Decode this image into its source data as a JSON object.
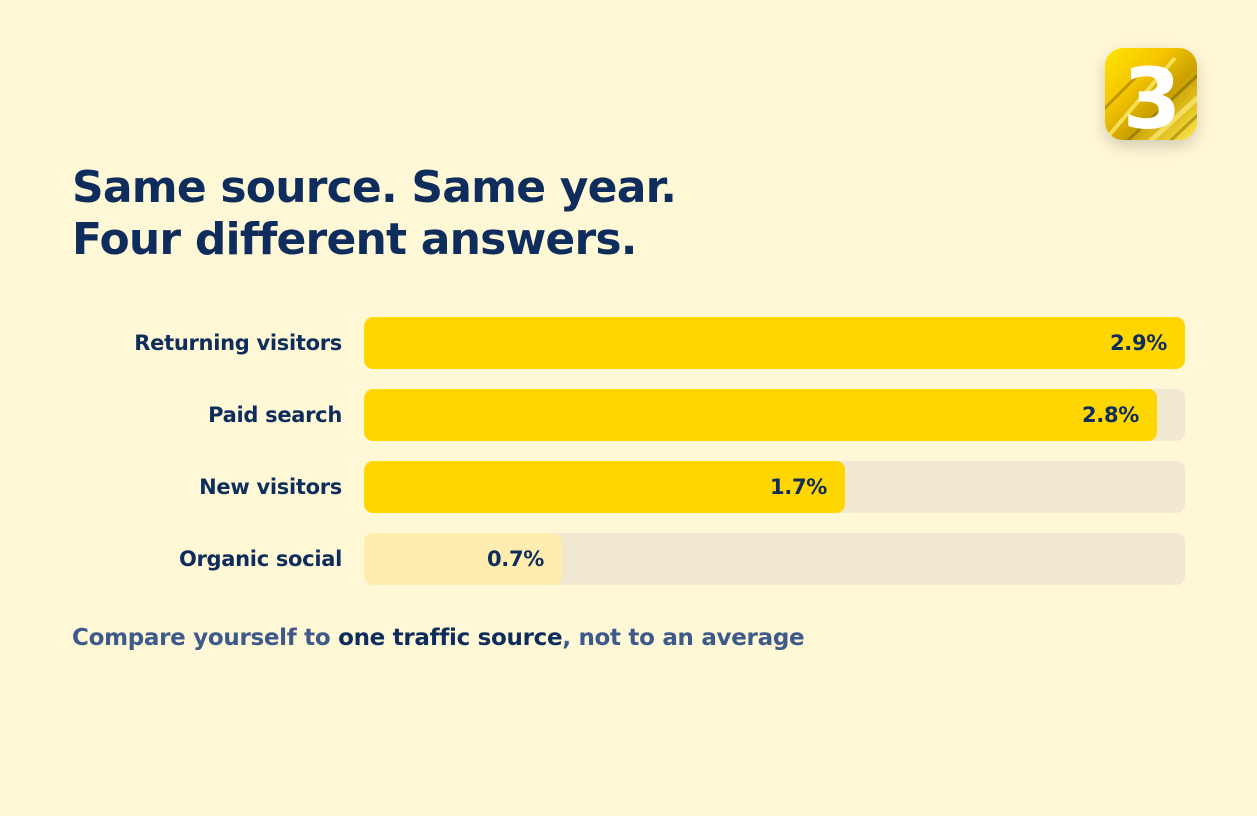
{
  "title": {
    "line1": "Same source. Same year.",
    "line2": "Four different answers."
  },
  "logo": {
    "icon": "number-three-logo-icon",
    "text": "3"
  },
  "colors": {
    "background": "#FFF8D6",
    "text": "#0F2D5C",
    "caption_text": "#3D5A8A",
    "bar": "#FFD600",
    "bar_light": "#FFEDB0",
    "track": "#F0E8D0"
  },
  "chart_data": {
    "type": "bar",
    "orientation": "horizontal",
    "categories": [
      "Returning visitors",
      "Paid search",
      "New visitors",
      "Organic social"
    ],
    "values": [
      2.9,
      2.8,
      1.7,
      0.7
    ],
    "value_labels": [
      "2.9%",
      "2.8%",
      "1.7%",
      "0.7%"
    ],
    "unit": "%",
    "xlim": [
      0,
      2.9
    ],
    "grid": false,
    "legend": "none"
  },
  "caption": {
    "part1": "Compare yourself to ",
    "emphasis": "one traffic source",
    "part2": ", not to an average"
  }
}
